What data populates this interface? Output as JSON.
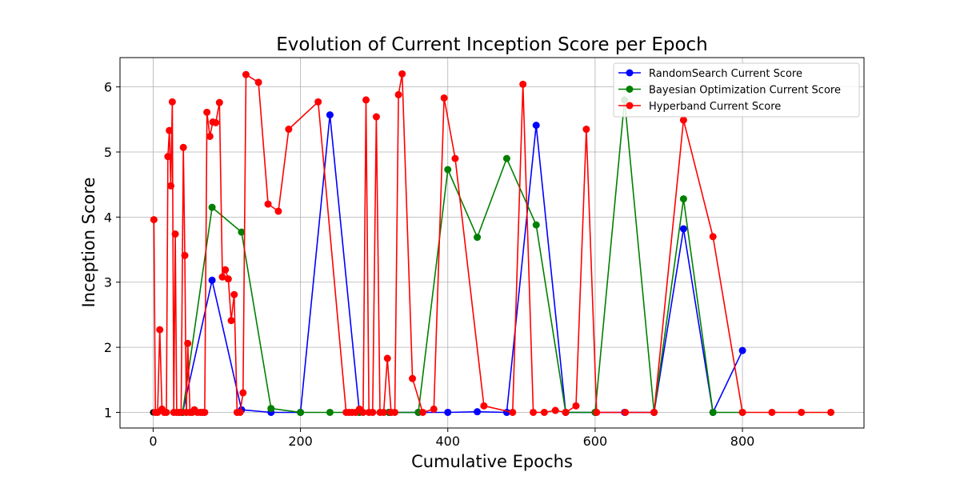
{
  "chart_data": {
    "type": "line",
    "title": "Evolution of Current Inception Score per Epoch",
    "xlabel": "Cumulative Epochs",
    "ylabel": "Inception Score",
    "xlim": [
      -45,
      965
    ],
    "ylim": [
      0.76,
      6.45
    ],
    "xticks": [
      0,
      200,
      400,
      600,
      800
    ],
    "yticks": [
      1,
      2,
      3,
      4,
      5,
      6
    ],
    "grid": true,
    "legend_position": "top-right",
    "origin_marker": {
      "x": 0,
      "y": 1,
      "color": "#000000"
    },
    "series": [
      {
        "name": "RandomSearch Current Score",
        "color": "#0000ff",
        "x": [
          40,
          80,
          120,
          160,
          200,
          240,
          280,
          320,
          360,
          400,
          440,
          480,
          520,
          560,
          600,
          640,
          680,
          720,
          760,
          800
        ],
        "y": [
          1.0,
          3.03,
          1.04,
          1.0,
          1.0,
          5.57,
          1.0,
          1.0,
          1.0,
          1.0,
          1.01,
          1.0,
          5.41,
          1.0,
          1.0,
          1.0,
          1.0,
          3.82,
          1.0,
          1.95
        ]
      },
      {
        "name": "Bayesian Optimization Current Score",
        "color": "#008000",
        "x": [
          40,
          80,
          120,
          160,
          200,
          240,
          280,
          320,
          360,
          400,
          440,
          480,
          520,
          560,
          600,
          640,
          680,
          720,
          760,
          800
        ],
        "y": [
          1.0,
          4.15,
          3.77,
          1.06,
          1.0,
          1.0,
          1.0,
          1.0,
          1.0,
          4.73,
          3.69,
          4.9,
          3.88,
          1.0,
          1.0,
          5.8,
          1.0,
          4.28,
          1.0,
          1.0
        ]
      },
      {
        "name": "Hyperband Current Score",
        "color": "#ff0000",
        "x": [
          1,
          3,
          6,
          9,
          12,
          15,
          18,
          20,
          22,
          24,
          26,
          28,
          30,
          32,
          35,
          38,
          41,
          43,
          45,
          47,
          50,
          53,
          56,
          60,
          64,
          67,
          70,
          73,
          77,
          81,
          85,
          90,
          94,
          98,
          102,
          106,
          110,
          114,
          118,
          122,
          126,
          143,
          156,
          170,
          184,
          224,
          262,
          266,
          270,
          275,
          280,
          285,
          289,
          293,
          298,
          303,
          308,
          313,
          318,
          323,
          328,
          333,
          338,
          352,
          366,
          381,
          395,
          410,
          449,
          488,
          502,
          516,
          531,
          546,
          560,
          574,
          588,
          602,
          641,
          680,
          720,
          760,
          800,
          840,
          880,
          920
        ],
        "y": [
          3.96,
          1.0,
          1.0,
          2.27,
          1.05,
          1.0,
          1.0,
          4.93,
          5.33,
          4.48,
          5.77,
          1.0,
          3.74,
          1.0,
          1.0,
          1.0,
          5.07,
          3.41,
          1.0,
          2.06,
          1.0,
          1.0,
          1.04,
          1.0,
          1.0,
          1.0,
          1.0,
          5.61,
          5.24,
          5.46,
          5.45,
          5.76,
          3.08,
          3.19,
          3.05,
          2.41,
          2.81,
          1.0,
          1.0,
          1.3,
          6.19,
          6.07,
          4.2,
          4.09,
          5.35,
          5.77,
          1.0,
          1.0,
          1.0,
          1.0,
          1.05,
          1.0,
          5.8,
          1.0,
          1.0,
          5.54,
          1.0,
          1.0,
          1.83,
          1.0,
          1.0,
          5.88,
          6.2,
          1.52,
          1.0,
          1.05,
          5.83,
          4.9,
          1.1,
          1.0,
          6.04,
          1.0,
          1.0,
          1.03,
          1.0,
          1.1,
          5.35,
          1.0,
          1.0,
          1.0,
          5.49,
          3.7,
          1.0,
          1.0,
          1.0,
          1.0
        ]
      }
    ]
  }
}
